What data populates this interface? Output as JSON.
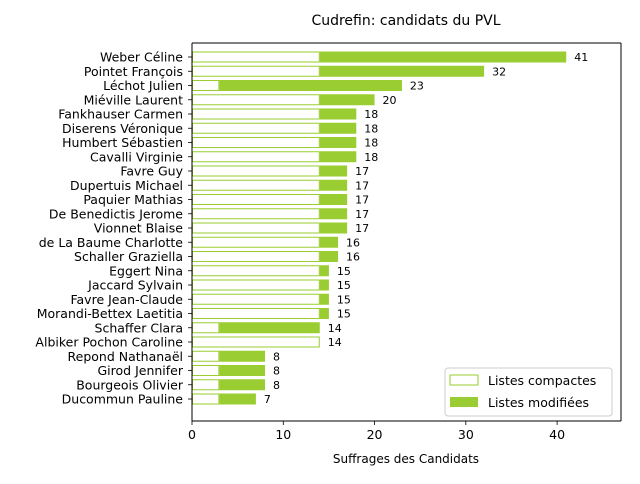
{
  "chart_data": {
    "type": "bar",
    "orientation": "horizontal",
    "stacked": true,
    "title": "Cudrefin: candidats du PVL",
    "xlabel": "Suffrages des Candidats",
    "ylabel": "",
    "xlim": [
      0,
      47
    ],
    "xticks": [
      0,
      10,
      20,
      30,
      40
    ],
    "grid": false,
    "legend_position": "lower-right",
    "colors": {
      "bar": "#9acd32",
      "compact_fill": "#ffffff",
      "compact_edge": "#9acd32"
    },
    "categories": [
      "Weber Céline",
      "Pointet François",
      "Léchot Julien",
      "Miéville Laurent",
      "Fankhauser Carmen",
      "Diserens Véronique",
      "Humbert Sébastien",
      "Cavalli Virginie",
      "Favre Guy",
      "Dupertuis Michael",
      "Paquier Mathias",
      "De Benedictis Jerome",
      "Vionnet Blaise",
      "de La Baume Charlotte",
      "Schaller Graziella",
      "Eggert Nina",
      "Jaccard Sylvain",
      "Favre Jean-Claude",
      "Morandi-Bettex Laetitia",
      "Schaffer Clara",
      "Albiker Pochon Caroline",
      "Repond Nathanaël",
      "Girod Jennifer",
      "Bourgeois Olivier",
      "Ducommun Pauline"
    ],
    "series": [
      {
        "name": "Listes compactes",
        "values": [
          14,
          14,
          3,
          14,
          14,
          14,
          14,
          14,
          14,
          14,
          14,
          14,
          14,
          14,
          14,
          14,
          14,
          14,
          14,
          3,
          14,
          3,
          3,
          3,
          3
        ]
      },
      {
        "name": "Listes modifiées",
        "values": [
          27,
          18,
          20,
          6,
          4,
          4,
          4,
          4,
          3,
          3,
          3,
          3,
          3,
          2,
          2,
          1,
          1,
          1,
          1,
          11,
          0,
          5,
          5,
          5,
          4
        ]
      }
    ],
    "totals": [
      41,
      32,
      23,
      20,
      18,
      18,
      18,
      18,
      17,
      17,
      17,
      17,
      17,
      16,
      16,
      15,
      15,
      15,
      15,
      14,
      14,
      8,
      8,
      8,
      7
    ]
  }
}
